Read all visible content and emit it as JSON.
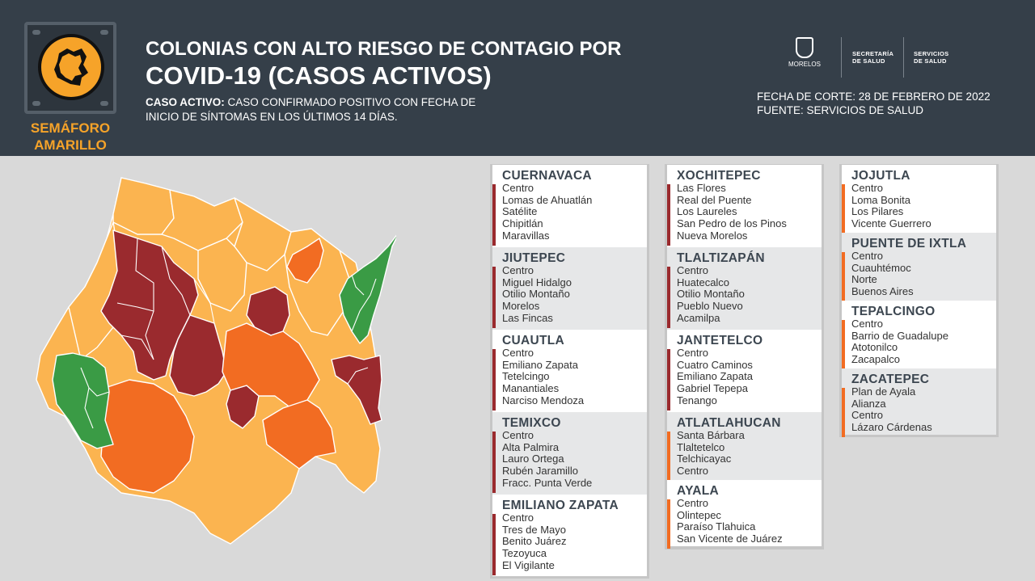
{
  "badge": {
    "line1": "SEMÁFORO",
    "line2": "AMARILLO"
  },
  "title": {
    "line1": "COLONIAS CON ALTO RIESGO DE CONTAGIO POR",
    "line2": "COVID-19 (CASOS ACTIVOS)"
  },
  "definition": {
    "label": "CASO ACTIVO:",
    "text_line1": "CASO CONFIRMADO POSITIVO CON FECHA DE",
    "text_line2": "INICIO DE SÍNTOMAS EN LOS ÚLTIMOS 14 DÍAS."
  },
  "logos": {
    "morelos": "MORELOS",
    "secretaria_1": "SECRETARÍA",
    "secretaria_2": "DE SALUD",
    "servicios_1": "SERVICIOS",
    "servicios_2": "DE SALUD"
  },
  "meta": {
    "fecha": "FECHA DE CORTE: 28 DE FEBRERO DE 2022",
    "fuente": "FUENTE: SERVICIOS DE SALUD"
  },
  "colors": {
    "red": "#9a2a2e",
    "orange": "#f26c22",
    "yellow": "#fbb450",
    "green": "#3a9b45",
    "header": "#353f49",
    "accent": "#f6a329"
  },
  "municipios": [
    {
      "name": "CUERNAVACA",
      "risk": "red",
      "colonias": [
        "Centro",
        "Lomas de Ahuatlán",
        "Satélite",
        "Chipitlán",
        "Maravillas"
      ]
    },
    {
      "name": "JIUTEPEC",
      "risk": "red",
      "colonias": [
        "Centro",
        "Miguel Hidalgo",
        "Otilio Montaño",
        "Morelos",
        "Las Fincas"
      ]
    },
    {
      "name": "CUAUTLA",
      "risk": "red",
      "colonias": [
        "Centro",
        "Emiliano Zapata",
        "Tetelcingo",
        "Manantiales",
        "Narciso Mendoza"
      ]
    },
    {
      "name": "TEMIXCO",
      "risk": "red",
      "colonias": [
        "Centro",
        "Alta Palmira",
        "Lauro Ortega",
        "Rubén Jaramillo",
        "Fracc. Punta Verde"
      ]
    },
    {
      "name": "EMILIANO ZAPATA",
      "risk": "red",
      "colonias": [
        "Centro",
        "Tres de Mayo",
        "Benito Juárez",
        "Tezoyuca",
        "El Vigilante"
      ]
    },
    {
      "name": "XOCHITEPEC",
      "risk": "red",
      "colonias": [
        "Las Flores",
        "Real del Puente",
        "Los Laureles",
        "San Pedro de los Pinos",
        "Nueva Morelos"
      ]
    },
    {
      "name": "TLALTIZAPÁN",
      "risk": "red",
      "colonias": [
        "Centro",
        "Huatecalco",
        "Otilio Montaño",
        "Pueblo Nuevo",
        "Acamilpa"
      ]
    },
    {
      "name": "JANTETELCO",
      "risk": "red",
      "colonias": [
        "Centro",
        "Cuatro Caminos",
        "Emiliano Zapata",
        "Gabriel Tepepa",
        "Tenango"
      ]
    },
    {
      "name": "ATLATLAHUCAN",
      "risk": "orange",
      "colonias": [
        "Santa Bárbara",
        "Tlaltetelco",
        "Telchicayac",
        "Centro"
      ]
    },
    {
      "name": "AYALA",
      "risk": "orange",
      "colonias": [
        "Centro",
        "Olintepec",
        "Paraíso Tlahuica",
        "San Vicente de Juárez"
      ]
    },
    {
      "name": "JOJUTLA",
      "risk": "orange",
      "colonias": [
        "Centro",
        "Loma Bonita",
        "Los Pilares",
        "Vicente Guerrero"
      ]
    },
    {
      "name": "PUENTE DE IXTLA",
      "risk": "orange",
      "colonias": [
        "Centro",
        "Cuauhtémoc",
        "Norte",
        "Buenos Aires"
      ]
    },
    {
      "name": "TEPALCINGO",
      "risk": "orange",
      "colonias": [
        "Centro",
        "Barrio de Guadalupe",
        "Atotonilco",
        "Zacapalco"
      ]
    },
    {
      "name": "ZACATEPEC",
      "risk": "orange",
      "colonias": [
        "Plan de Ayala",
        "Alianza",
        "Centro",
        "Lázaro Cárdenas"
      ]
    }
  ]
}
